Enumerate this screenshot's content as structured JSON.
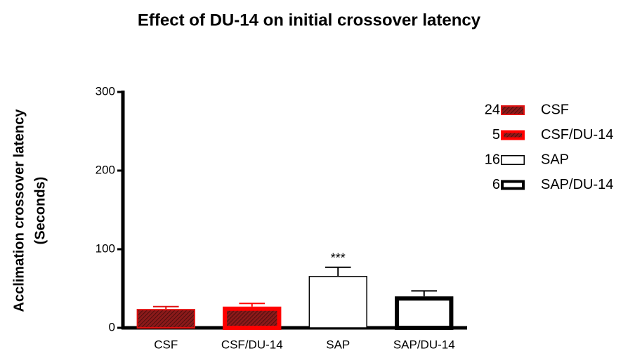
{
  "chart_data": {
    "type": "bar",
    "title": "Effect of DU-14 on initial crossover latency",
    "ylabel": [
      "Acclimation crossover latency",
      "(Seconds)"
    ],
    "categories": [
      "CSF",
      "CSF/DU-14",
      "SAP",
      "SAP/DU-14"
    ],
    "values": [
      24,
      27,
      66,
      40
    ],
    "errors": [
      3,
      4,
      11,
      7
    ],
    "colors": [
      "#8b1a1a",
      "#ff0000",
      "#ffffff",
      "#ffffff"
    ],
    "edgecolors": [
      "#e01010",
      "#ff0000",
      "#000000",
      "#000000"
    ],
    "linewidths": [
      2,
      6,
      1.5,
      6
    ],
    "hatch": [
      true,
      true,
      false,
      false
    ],
    "legend_n": [
      24,
      5,
      16,
      6
    ],
    "annotations": [
      {
        "text": "***",
        "category": "SAP"
      }
    ],
    "ylim": [
      0,
      300
    ],
    "yticks": [
      0,
      100,
      200,
      300
    ]
  }
}
